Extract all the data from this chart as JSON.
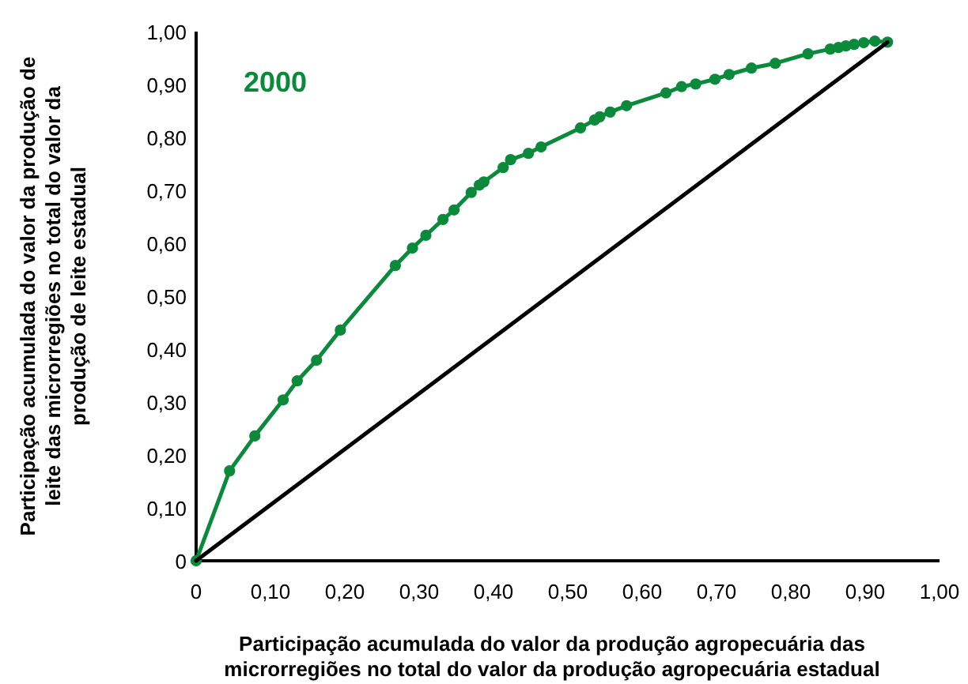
{
  "chart_data": {
    "type": "line",
    "xlabel": "Participação acumulada do valor da produção agropecuária das microrregiões no total do valor da produção agropecuária estadual",
    "ylabel": "Participação acumulada do valor da produção de leite das microrregiões no total do valor da produção de leite estadual",
    "xlim": [
      0,
      1
    ],
    "ylim": [
      0,
      1
    ],
    "xticks": [
      {
        "value": 0,
        "label": "0"
      },
      {
        "value": 0.1,
        "label": "0,10"
      },
      {
        "value": 0.2,
        "label": "0,20"
      },
      {
        "value": 0.3,
        "label": "0,30"
      },
      {
        "value": 0.4,
        "label": "0,40"
      },
      {
        "value": 0.5,
        "label": "0,50"
      },
      {
        "value": 0.6,
        "label": "0,60"
      },
      {
        "value": 0.7,
        "label": "0,70"
      },
      {
        "value": 0.8,
        "label": "0,80"
      },
      {
        "value": 0.9,
        "label": "0,90"
      },
      {
        "value": 1,
        "label": "1,00"
      }
    ],
    "yticks": [
      {
        "value": 0,
        "label": "0"
      },
      {
        "value": 0.1,
        "label": "0,10"
      },
      {
        "value": 0.2,
        "label": "0,20"
      },
      {
        "value": 0.3,
        "label": "0,30"
      },
      {
        "value": 0.4,
        "label": "0,40"
      },
      {
        "value": 0.5,
        "label": "0,50"
      },
      {
        "value": 0.6,
        "label": "0,60"
      },
      {
        "value": 0.7,
        "label": "0,70"
      },
      {
        "value": 0.8,
        "label": "0,80"
      },
      {
        "value": 0.9,
        "label": "0,90"
      },
      {
        "value": 1,
        "label": "1,00"
      }
    ],
    "grid": false,
    "marker": "circle",
    "series": [
      {
        "name": "2000",
        "color": "#0a8a3a",
        "x": [
          0,
          0.045,
          0.079,
          0.117,
          0.136,
          0.162,
          0.194,
          0.268,
          0.291,
          0.309,
          0.332,
          0.347,
          0.37,
          0.381,
          0.387,
          0.413,
          0.423,
          0.447,
          0.464,
          0.517,
          0.536,
          0.543,
          0.557,
          0.579,
          0.632,
          0.653,
          0.672,
          0.698,
          0.717,
          0.747,
          0.779,
          0.823,
          0.853,
          0.864,
          0.874,
          0.885,
          0.898,
          0.913,
          0.93
        ],
        "values": [
          0,
          0.17,
          0.236,
          0.304,
          0.34,
          0.379,
          0.436,
          0.558,
          0.591,
          0.615,
          0.645,
          0.663,
          0.696,
          0.71,
          0.716,
          0.743,
          0.758,
          0.77,
          0.782,
          0.818,
          0.833,
          0.839,
          0.848,
          0.86,
          0.884,
          0.896,
          0.901,
          0.91,
          0.919,
          0.931,
          0.94,
          0.958,
          0.967,
          0.97,
          0.973,
          0.976,
          0.979,
          0.982,
          0.98
        ]
      },
      {
        "color": "#000000",
        "marker": "none",
        "x": [
          0,
          0.93
        ],
        "values": [
          0,
          0.98
        ]
      }
    ]
  }
}
